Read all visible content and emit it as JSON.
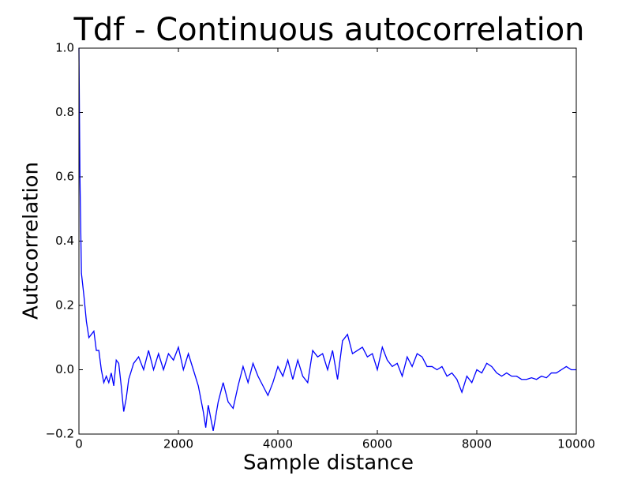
{
  "chart_data": {
    "type": "line",
    "title": "Tdf - Continuous autocorrelation",
    "x_label": "Sample distance",
    "y_label": "Autocorrelation",
    "x": [
      0,
      20,
      50,
      100,
      150,
      200,
      250,
      300,
      350,
      400,
      450,
      500,
      550,
      600,
      650,
      700,
      750,
      800,
      850,
      900,
      950,
      1000,
      1100,
      1200,
      1300,
      1400,
      1500,
      1600,
      1700,
      1800,
      1900,
      2000,
      2100,
      2200,
      2300,
      2400,
      2500,
      2550,
      2600,
      2700,
      2800,
      2900,
      3000,
      3100,
      3200,
      3300,
      3400,
      3500,
      3600,
      3700,
      3800,
      3900,
      4000,
      4100,
      4200,
      4300,
      4400,
      4500,
      4600,
      4700,
      4800,
      4900,
      5000,
      5100,
      5200,
      5300,
      5400,
      5500,
      5600,
      5700,
      5800,
      5900,
      6000,
      6100,
      6200,
      6300,
      6400,
      6500,
      6600,
      6700,
      6800,
      6900,
      7000,
      7100,
      7200,
      7300,
      7400,
      7500,
      7600,
      7700,
      7800,
      7900,
      8000,
      8100,
      8200,
      8300,
      8400,
      8500,
      8600,
      8700,
      8800,
      8900,
      9000,
      9100,
      9200,
      9300,
      9400,
      9500,
      9600,
      9700,
      9800,
      9900,
      10000
    ],
    "series": [
      {
        "name": "Autocorrelation",
        "color": "#0000ff",
        "values": [
          1.0,
          0.6,
          0.3,
          0.23,
          0.15,
          0.1,
          0.11,
          0.12,
          0.06,
          0.06,
          0.0,
          -0.04,
          -0.02,
          -0.04,
          -0.01,
          -0.05,
          0.03,
          0.02,
          -0.05,
          -0.13,
          -0.09,
          -0.03,
          0.02,
          0.04,
          0.0,
          0.06,
          0.0,
          0.05,
          0.0,
          0.05,
          0.03,
          0.07,
          0.0,
          0.05,
          0.0,
          -0.05,
          -0.13,
          -0.18,
          -0.11,
          -0.19,
          -0.1,
          -0.04,
          -0.1,
          -0.12,
          -0.05,
          0.01,
          -0.04,
          0.02,
          -0.02,
          -0.05,
          -0.08,
          -0.04,
          0.01,
          -0.02,
          0.03,
          -0.03,
          0.03,
          -0.02,
          -0.04,
          0.06,
          0.04,
          0.05,
          0.0,
          0.06,
          -0.03,
          0.09,
          0.11,
          0.05,
          0.06,
          0.07,
          0.04,
          0.05,
          0.0,
          0.07,
          0.03,
          0.01,
          0.02,
          -0.02,
          0.04,
          0.01,
          0.05,
          0.04,
          0.01,
          0.01,
          0.0,
          0.01,
          -0.02,
          -0.01,
          -0.03,
          -0.07,
          -0.02,
          -0.04,
          0.0,
          -0.01,
          0.02,
          0.01,
          -0.01,
          -0.02,
          -0.01,
          -0.02,
          -0.02,
          -0.03,
          -0.03,
          -0.025,
          -0.03,
          -0.02,
          -0.025,
          -0.01,
          -0.01,
          0.0,
          0.01,
          0.0,
          0.0
        ]
      }
    ],
    "xlim": [
      0,
      10000
    ],
    "xticks": [
      0,
      2000,
      4000,
      6000,
      8000,
      10000
    ],
    "ylim": [
      -0.2,
      1.0
    ],
    "yticks": [
      {
        "value": -0.2,
        "label": "−0.2"
      },
      {
        "value": 0,
        "label": "0.0"
      },
      0.2,
      0.4,
      0.6,
      0.8,
      {
        "value": 1.0,
        "label": "1.0"
      }
    ],
    "grid": false
  }
}
